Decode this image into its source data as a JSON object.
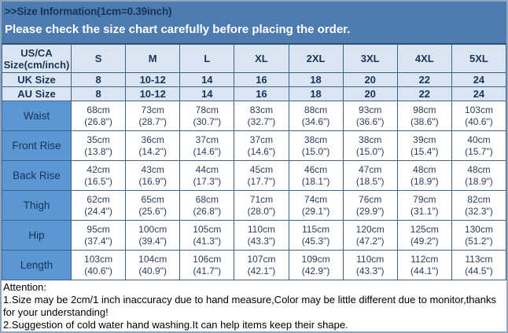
{
  "banner": {
    "title": ">>Size Information(1cm=0.39inch)",
    "subtitle": "Please check the size chart carefully before placing the order."
  },
  "size_table": {
    "corner_line1": "US/CA",
    "corner_line2": "Size(cm/inch)",
    "sizes": [
      "S",
      "M",
      "L",
      "XL",
      "2XL",
      "3XL",
      "4XL",
      "5XL"
    ],
    "size_rows": [
      {
        "label": "UK Size",
        "values": [
          "8",
          "10-12",
          "14",
          "16",
          "18",
          "20",
          "22",
          "24"
        ]
      },
      {
        "label": "AU Size",
        "values": [
          "8",
          "10-12",
          "14",
          "16",
          "18",
          "20",
          "22",
          "24"
        ]
      }
    ],
    "measurement_rows": [
      {
        "label": "Waist",
        "cells": [
          {
            "cm": "68cm",
            "in": "(26.8\")"
          },
          {
            "cm": "73cm",
            "in": "(28.7\")"
          },
          {
            "cm": "78cm",
            "in": "(30.7\")"
          },
          {
            "cm": "83cm",
            "in": "(32.7\")"
          },
          {
            "cm": "88cm",
            "in": "(34.6\")"
          },
          {
            "cm": "93cm",
            "in": "(36.6\")"
          },
          {
            "cm": "98cm",
            "in": "(38.6\")"
          },
          {
            "cm": "103cm",
            "in": "(40.6\")"
          }
        ]
      },
      {
        "label": "Front Rise",
        "cells": [
          {
            "cm": "35cm",
            "in": "(13.8\")"
          },
          {
            "cm": "36cm",
            "in": "(14.2\")"
          },
          {
            "cm": "37cm",
            "in": "(14.6\")"
          },
          {
            "cm": "37cm",
            "in": "(14.6\")"
          },
          {
            "cm": "38cm",
            "in": "(15.0\")"
          },
          {
            "cm": "38cm",
            "in": "(15.0\")"
          },
          {
            "cm": "39cm",
            "in": "(15.4\")"
          },
          {
            "cm": "40cm",
            "in": "(15.7\")"
          }
        ]
      },
      {
        "label": "Back Rise",
        "cells": [
          {
            "cm": "42cm",
            "in": "(16.5\")"
          },
          {
            "cm": "43cm",
            "in": "(16.9\")"
          },
          {
            "cm": "44cm",
            "in": "(17.3\")"
          },
          {
            "cm": "45cm",
            "in": "(17.7\")"
          },
          {
            "cm": "46cm",
            "in": "(18.1\")"
          },
          {
            "cm": "47cm",
            "in": "(18.5\")"
          },
          {
            "cm": "48cm",
            "in": "(18.9\")"
          },
          {
            "cm": "48cm",
            "in": "(18.9\")"
          }
        ]
      },
      {
        "label": "Thigh",
        "cells": [
          {
            "cm": "62cm",
            "in": "(24.4\")"
          },
          {
            "cm": "65cm",
            "in": "(25.6\")"
          },
          {
            "cm": "68cm",
            "in": "(26.8\")"
          },
          {
            "cm": "71cm",
            "in": "(28.0\")"
          },
          {
            "cm": "74cm",
            "in": "(29.1\")"
          },
          {
            "cm": "76cm",
            "in": "(29.9\")"
          },
          {
            "cm": "79cm",
            "in": "(31.1\")"
          },
          {
            "cm": "82cm",
            "in": "(32.3\")"
          }
        ]
      },
      {
        "label": "Hip",
        "cells": [
          {
            "cm": "95cm",
            "in": "(37.4\")"
          },
          {
            "cm": "100cm",
            "in": "(39.4\")"
          },
          {
            "cm": "105cm",
            "in": "(41.3\")"
          },
          {
            "cm": "110cm",
            "in": "(43.3\")"
          },
          {
            "cm": "115cm",
            "in": "(45.3\")"
          },
          {
            "cm": "120cm",
            "in": "(47.2\")"
          },
          {
            "cm": "125cm",
            "in": "(49.2\")"
          },
          {
            "cm": "130cm",
            "in": "(51.2\")"
          }
        ]
      },
      {
        "label": "Length",
        "cells": [
          {
            "cm": "103cm",
            "in": "(40.6\")"
          },
          {
            "cm": "104cm",
            "in": "(40.9\")"
          },
          {
            "cm": "106cm",
            "in": "(41.7\")"
          },
          {
            "cm": "107cm",
            "in": "(42.1\")"
          },
          {
            "cm": "109cm",
            "in": "(42.9\")"
          },
          {
            "cm": "110cm",
            "in": "(43.3\")"
          },
          {
            "cm": "112cm",
            "in": "(44.1\")"
          },
          {
            "cm": "113cm",
            "in": "(44.5\")"
          }
        ]
      }
    ]
  },
  "attention": {
    "title": "Attention:",
    "notes": [
      "1.Size may be 2cm/1 inch inaccuracy due to hand measure,Color may be little different due to monitor,thanks for your understanding!",
      "2.Suggestion of cold water hand washing.It can help items keep their shape."
    ]
  },
  "colors": {
    "banner_background": "#4e7cb0",
    "header_background": "#dbe5f1",
    "row_label_background": "#5b97d3",
    "table_border": "#3c648f",
    "banner_title_text": "#17355c",
    "banner_subtitle_text": "#ffffff",
    "data_text": "#2c3e5c"
  }
}
